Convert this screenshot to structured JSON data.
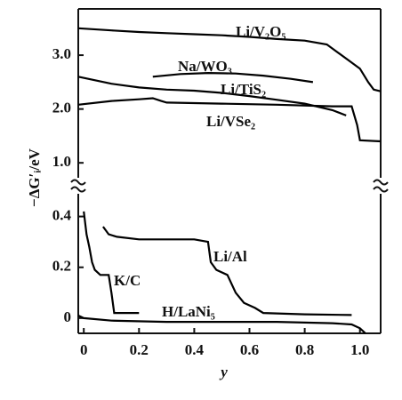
{
  "chart_data": [
    {
      "type": "line",
      "ylabel": "−ΔG′ᵢ/eV",
      "ylim": [
        0.64,
        3.86
      ],
      "yticks": [
        {
          "value": 1,
          "label": "1.0"
        },
        {
          "value": 2,
          "label": "2.0"
        },
        {
          "value": 3,
          "label": "3.0"
        }
      ],
      "series": [
        {
          "name": "Li/V₂O₅",
          "color": "#000000",
          "x": [
            -0.02,
            0.1,
            0.2,
            0.3,
            0.4,
            0.5,
            0.6,
            0.7,
            0.8,
            0.88,
            0.92,
            0.96,
            1.0,
            1.03,
            1.05,
            1.075
          ],
          "values": [
            3.5,
            3.46,
            3.43,
            3.41,
            3.39,
            3.37,
            3.34,
            3.3,
            3.27,
            3.2,
            3.05,
            2.9,
            2.75,
            2.5,
            2.36,
            2.33
          ]
        },
        {
          "name": "Na/WO₃",
          "color": "#000000",
          "x": [
            0.25,
            0.35,
            0.45,
            0.55,
            0.65,
            0.75,
            0.83
          ],
          "values": [
            2.6,
            2.65,
            2.67,
            2.66,
            2.62,
            2.56,
            2.5
          ]
        },
        {
          "name": "Li/TiS₂",
          "color": "#000000",
          "x": [
            -0.02,
            0.1,
            0.2,
            0.3,
            0.4,
            0.5,
            0.6,
            0.7,
            0.8,
            0.9,
            0.95
          ],
          "values": [
            2.6,
            2.47,
            2.4,
            2.36,
            2.34,
            2.3,
            2.24,
            2.17,
            2.1,
            1.98,
            1.88
          ]
        },
        {
          "name": "Li/VSe₂",
          "color": "#000000",
          "x": [
            -0.02,
            0.1,
            0.2,
            0.25,
            0.28,
            0.3,
            0.5,
            0.7,
            0.9,
            0.97,
            0.99,
            1.0,
            1.075
          ],
          "values": [
            2.08,
            2.15,
            2.18,
            2.2,
            2.15,
            2.12,
            2.1,
            2.08,
            2.05,
            2.05,
            1.7,
            1.42,
            1.4
          ]
        }
      ]
    },
    {
      "type": "line",
      "xlabel": "y",
      "xlim": [
        -0.02,
        1.075
      ],
      "xticks": [
        0,
        0.2,
        0.4,
        0.6,
        0.8,
        {
          "value": 1,
          "label": "1.0"
        }
      ],
      "ylim": [
        -0.06,
        0.5
      ],
      "yticks": [
        0,
        0.2,
        0.4
      ],
      "series": [
        {
          "name": "Li/Al",
          "color": "#000000",
          "x": [
            0.07,
            0.09,
            0.12,
            0.2,
            0.3,
            0.4,
            0.45,
            0.46,
            0.48,
            0.52,
            0.55,
            0.58,
            0.62,
            0.65,
            0.8,
            0.97
          ],
          "values": [
            0.36,
            0.33,
            0.32,
            0.31,
            0.31,
            0.31,
            0.3,
            0.22,
            0.19,
            0.17,
            0.1,
            0.06,
            0.04,
            0.02,
            0.015,
            0.012
          ]
        },
        {
          "name": "K/C",
          "color": "#000000",
          "x": [
            0,
            0.01,
            0.02,
            0.03,
            0.04,
            0.06,
            0.09,
            0.1,
            0.11,
            0.2
          ],
          "values": [
            0.42,
            0.33,
            0.28,
            0.22,
            0.19,
            0.17,
            0.17,
            0.1,
            0.02,
            0.02
          ]
        },
        {
          "name": "H/LaNi₅",
          "color": "#000000",
          "x": [
            -0.02,
            0,
            0.1,
            0.3,
            0.5,
            0.7,
            0.9,
            0.97,
            1.0,
            1.02
          ],
          "values": [
            0.01,
            0.0,
            -0.01,
            -0.015,
            -0.015,
            -0.015,
            -0.02,
            -0.025,
            -0.04,
            -0.06
          ]
        }
      ]
    }
  ]
}
